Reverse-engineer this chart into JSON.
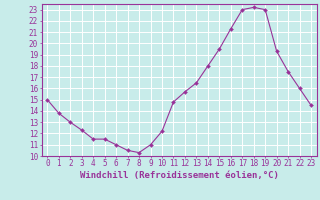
{
  "x": [
    0,
    1,
    2,
    3,
    4,
    5,
    6,
    7,
    8,
    9,
    10,
    11,
    12,
    13,
    14,
    15,
    16,
    17,
    18,
    19,
    20,
    21,
    22,
    23
  ],
  "y": [
    15.0,
    13.8,
    13.0,
    12.3,
    11.5,
    11.5,
    11.0,
    10.5,
    10.3,
    11.0,
    12.2,
    14.8,
    15.7,
    16.5,
    18.0,
    19.5,
    21.3,
    23.0,
    23.2,
    23.0,
    19.3,
    17.5,
    16.0,
    14.5
  ],
  "line_color": "#993399",
  "marker": "D",
  "marker_size": 2,
  "bg_color": "#c8ecea",
  "grid_color": "#ffffff",
  "xlabel": "Windchill (Refroidissement éolien,°C)",
  "ylim": [
    10,
    23.5
  ],
  "xlim": [
    -0.5,
    23.5
  ],
  "yticks": [
    10,
    11,
    12,
    13,
    14,
    15,
    16,
    17,
    18,
    19,
    20,
    21,
    22,
    23
  ],
  "xticks": [
    0,
    1,
    2,
    3,
    4,
    5,
    6,
    7,
    8,
    9,
    10,
    11,
    12,
    13,
    14,
    15,
    16,
    17,
    18,
    19,
    20,
    21,
    22,
    23
  ],
  "tick_color": "#993399",
  "label_fontsize": 6.5,
  "tick_fontsize": 5.5,
  "spine_color": "#993399"
}
